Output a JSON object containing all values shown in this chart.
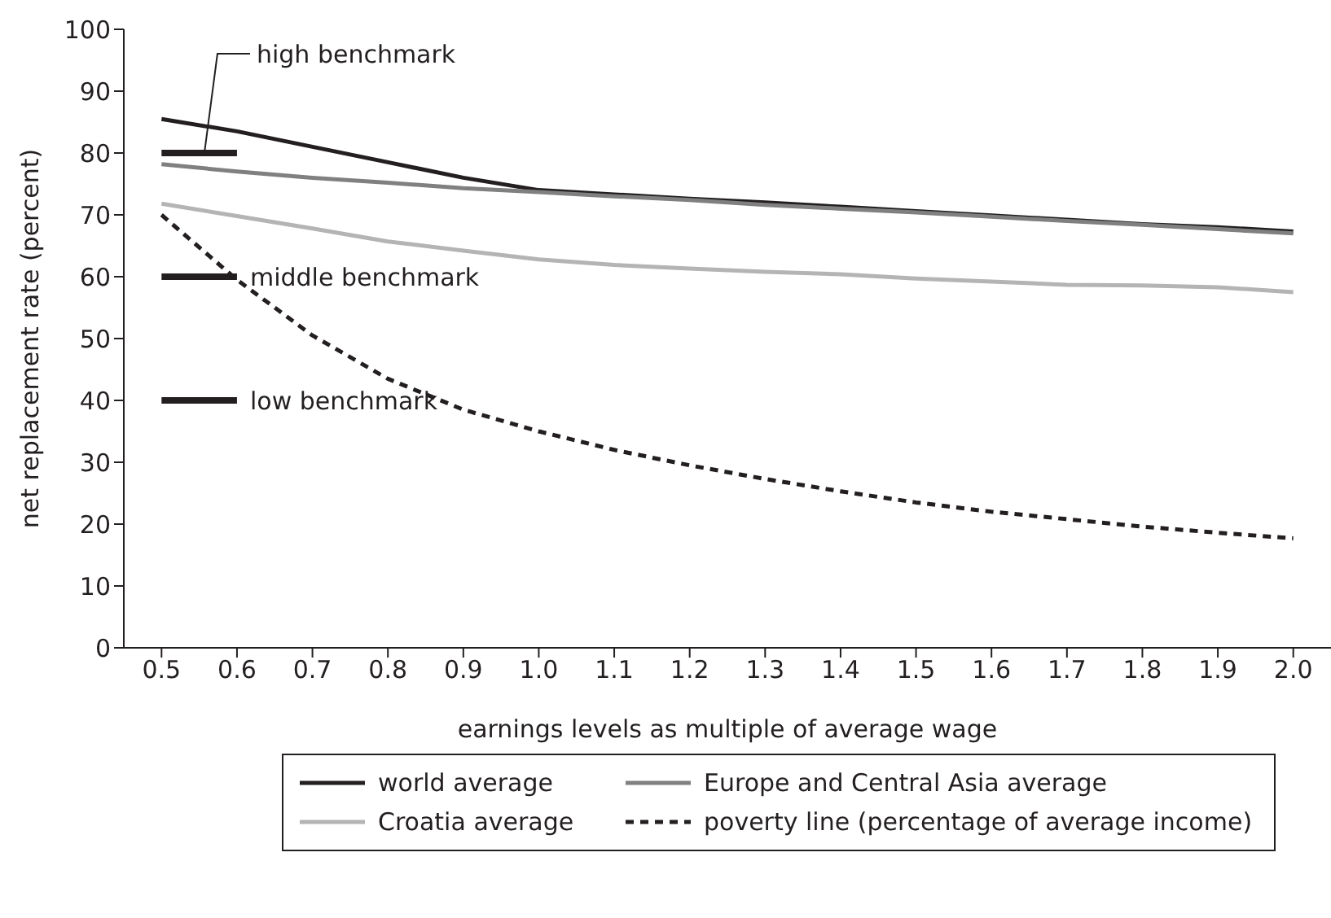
{
  "chart_data": {
    "type": "line",
    "xlabel": "earnings levels as multiple of average wage",
    "ylabel": "net replacement rate (percent)",
    "categories": [
      "0.5",
      "0.6",
      "0.7",
      "0.8",
      "0.9",
      "1.0",
      "1.1",
      "1.2",
      "1.3",
      "1.4",
      "1.5",
      "1.6",
      "1.7",
      "1.8",
      "1.9",
      "2.0"
    ],
    "series": [
      {
        "name": "world average",
        "color": "#231f20",
        "line_style": "solid",
        "values": [
          85.5,
          83.5,
          81,
          78.5,
          76,
          74,
          73.3,
          72.6,
          72,
          71.3,
          70.6,
          69.9,
          69.2,
          68.5,
          68,
          67.3
        ]
      },
      {
        "name": "Europe and Central Asia average",
        "color": "#808080",
        "line_style": "solid",
        "values": [
          78.2,
          77,
          76,
          75.2,
          74.3,
          73.7,
          73,
          72.4,
          71.6,
          71,
          70.4,
          69.7,
          69,
          68.4,
          67.7,
          67
        ]
      },
      {
        "name": "Croatia average",
        "color": "#b4b4b4",
        "line_style": "solid",
        "values": [
          71.8,
          69.8,
          67.8,
          65.7,
          64.2,
          62.8,
          61.9,
          61.3,
          60.8,
          60.4,
          59.7,
          59.2,
          58.7,
          58.6,
          58.3,
          57.5
        ]
      },
      {
        "name": "poverty line (percentage of average income)",
        "color": "#231f20",
        "line_style": "dashed",
        "values": [
          70,
          59.5,
          50.5,
          43.5,
          38.5,
          35,
          32,
          29.5,
          27.3,
          25.3,
          23.5,
          22,
          20.8,
          19.6,
          18.6,
          17.7
        ]
      },
      {
        "name": "high benchmark",
        "type": "line",
        "color": "#231f20",
        "line_style": "solid",
        "x": [
          "0.5",
          "0.6"
        ],
        "values": [
          80,
          80
        ]
      },
      {
        "name": "middle benchmark",
        "type": "line",
        "color": "#231f20",
        "line_style": "solid",
        "x": [
          "0.5",
          "0.6"
        ],
        "values": [
          60,
          60
        ]
      },
      {
        "name": "low benchmark",
        "type": "line",
        "color": "#231f20",
        "line_style": "solid",
        "x": [
          "0.5",
          "0.6"
        ],
        "values": [
          40,
          40
        ]
      }
    ],
    "ylim": [
      0,
      100
    ],
    "yticks": [
      0,
      10,
      20,
      30,
      40,
      50,
      60,
      70,
      80,
      90,
      100
    ],
    "legend": "bottom",
    "marker": "none"
  }
}
